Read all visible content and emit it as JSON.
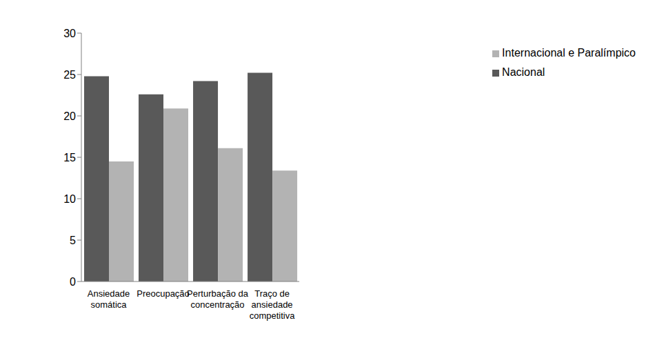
{
  "chart_data": {
    "type": "bar",
    "categories": [
      "Ansiedade somática",
      "Preocupação",
      "Perturbação da concentração",
      "Traço de ansiedade competitiva"
    ],
    "series": [
      {
        "name": "Nacional",
        "color": "#595959",
        "values": [
          24.8,
          22.6,
          24.2,
          25.2
        ]
      },
      {
        "name": "Internacional e Paralímpico",
        "color": "#b3b3b3",
        "values": [
          14.5,
          20.9,
          16.1,
          13.4
        ]
      }
    ],
    "ylim": [
      0,
      30
    ],
    "yticks": [
      0,
      5,
      10,
      15,
      20,
      25,
      30
    ],
    "grid": false,
    "legend": "top-right"
  }
}
